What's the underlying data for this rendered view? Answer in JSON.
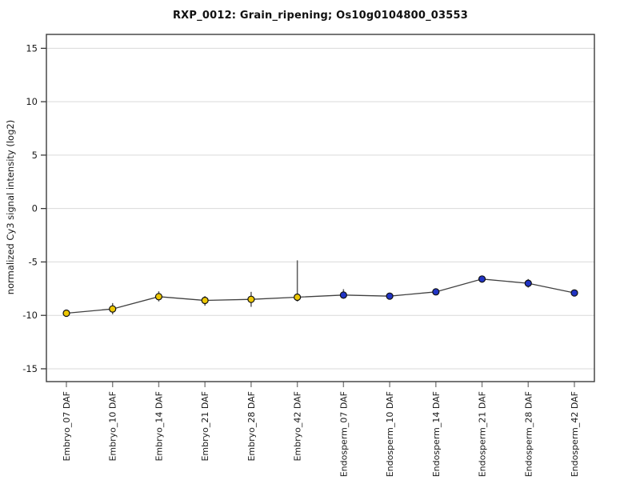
{
  "chart_data": {
    "type": "line",
    "title": "RXP_0012: Grain_ripening; Os10g0104800_03553",
    "xlabel": "",
    "ylabel": "normalized Cy3 signal intensity (log2)",
    "ylim": [
      -16.2,
      16.3
    ],
    "yticks": [
      -15,
      -10,
      -5,
      0,
      5,
      10,
      15
    ],
    "grid": "horizontal-only",
    "legend_position": "none",
    "categories": [
      "Embryo_07 DAF",
      "Embryo_10 DAF",
      "Embryo_14 DAF",
      "Embryo_21 DAF",
      "Embryo_28 DAF",
      "Embryo_42 DAF",
      "Endosperm_07 DAF",
      "Endosperm_10 DAF",
      "Endosperm_14 DAF",
      "Endosperm_21 DAF",
      "Endosperm_28 DAF",
      "Endosperm_42 DAF"
    ],
    "series": [
      {
        "name": "normalized Cy3 signal intensity (log2)",
        "values": [
          -9.8,
          -9.4,
          -8.25,
          -8.6,
          -8.5,
          -8.3,
          -8.1,
          -8.2,
          -7.8,
          -6.6,
          -7.0,
          -7.9
        ],
        "err_low": [
          null,
          -9.9,
          -8.7,
          -9.1,
          -9.2,
          -8.7,
          -8.45,
          null,
          -8.1,
          -6.95,
          -7.4,
          null
        ],
        "err_high": [
          null,
          -8.85,
          -7.75,
          -8.2,
          -7.8,
          -4.85,
          -7.55,
          null,
          -7.5,
          -6.3,
          -6.6,
          null
        ],
        "marker_group": [
          "embryo",
          "embryo",
          "embryo",
          "embryo",
          "embryo",
          "embryo",
          "endosperm",
          "endosperm",
          "endosperm",
          "endosperm",
          "endosperm",
          "endosperm"
        ]
      }
    ],
    "colors": {
      "embryo_point": "#edc703",
      "endosperm_point": "#2134c4",
      "marker_outline": "#111111",
      "line": "#404040",
      "error_bar": "#5a5a5a",
      "grid": "#d9d9d9",
      "frame": "#3c3c3c",
      "axis_tick": "#2a2a2a",
      "x_tick": "#808080",
      "tick_label": "#1a1a1a"
    }
  }
}
